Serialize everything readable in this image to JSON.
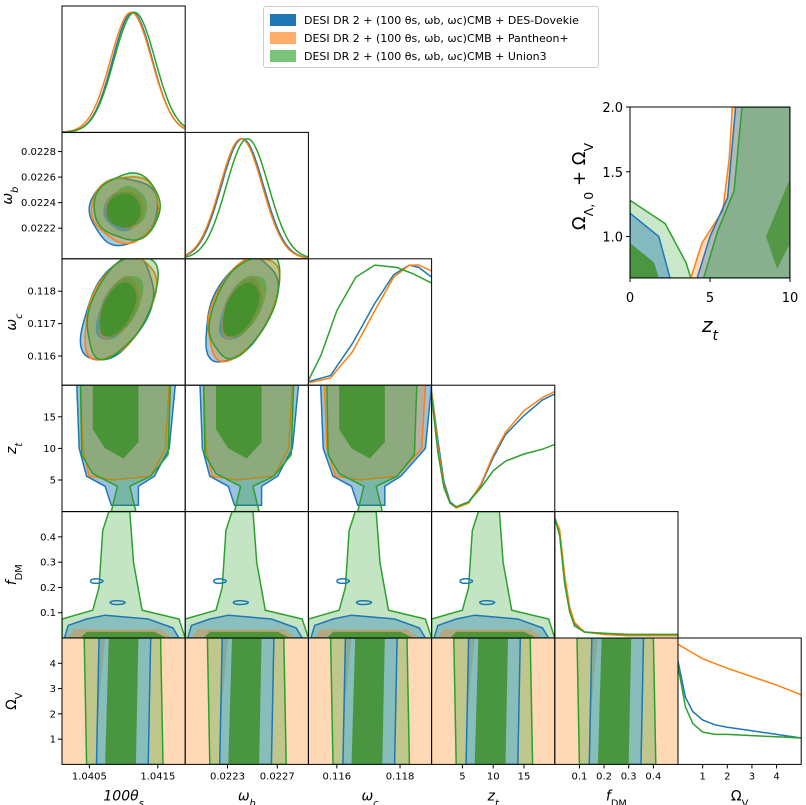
{
  "colors": {
    "blue": "#1f77b4",
    "orange": "#ff7f0e",
    "green": "#2ca02c",
    "overlap_green": "#3f8f2a"
  },
  "legend": {
    "placement": "top-center",
    "entries": [
      {
        "label": "DESI DR 2 + (100 θs, ωb, ωc)CMB + DES-Dovekie",
        "color": "#1f77b4"
      },
      {
        "label": "DESI DR 2 + (100 θs, ωb, ωc)CMB + Pantheon+",
        "color": "#ffad6b"
      },
      {
        "label": "DESI DR 2 + (100 θs, ωb, ωc)CMB + Union3",
        "color": "#7cc47a"
      }
    ]
  },
  "chart_data": [
    {
      "type": "corner",
      "parameters": [
        "100θs",
        "ωb",
        "ωc",
        "zt",
        "fDM",
        "ΩV"
      ],
      "ranges": {
        "100θs": [
          1.0401,
          1.0419
        ],
        "ωb": [
          0.02196,
          0.02295
        ],
        "ωc": [
          0.1151,
          0.119
        ],
        "zt": [
          0,
          20
        ],
        "fDM": [
          0,
          0.5
        ],
        "ΩV": [
          0,
          5
        ]
      },
      "x_ticks": {
        "100θs": [
          "1.0405",
          "1.0415"
        ],
        "ωb": [
          "0.0223",
          "0.0227"
        ],
        "ωc": [
          "0.116",
          "0.118"
        ],
        "zt": [
          "5",
          "10",
          "15"
        ],
        "fDM": [
          "0.1",
          "0.2",
          "0.3",
          "0.4"
        ],
        "ΩV": [
          "1",
          "2",
          "3",
          "4"
        ]
      },
      "y_ticks": {
        "ωb": [
          "0.0222",
          "0.0224",
          "0.0226",
          "0.0228"
        ],
        "ωc": [
          "0.116",
          "0.117",
          "0.118"
        ],
        "zt": [
          "5",
          "10",
          "15"
        ],
        "fDM": [
          "0.1",
          "0.2",
          "0.3",
          "0.4"
        ],
        "ΩV": [
          "1",
          "2",
          "3",
          "4"
        ]
      },
      "marginals": [
        {
          "param": "100θs",
          "series": [
            {
              "color": "blue",
              "mean": 1.04113,
              "sigma": 0.00029
            },
            {
              "color": "orange",
              "mean": 1.04111,
              "sigma": 0.0003
            },
            {
              "color": "green",
              "mean": 1.04116,
              "sigma": 0.0003
            }
          ]
        },
        {
          "param": "ωb",
          "series": [
            {
              "color": "blue",
              "mean": 0.02242,
              "sigma": 0.00017
            },
            {
              "color": "orange",
              "mean": 0.02241,
              "sigma": 0.00017
            },
            {
              "color": "green",
              "mean": 0.02246,
              "sigma": 0.00017
            }
          ]
        },
        {
          "param": "ωc",
          "series": [
            {
              "color": "blue",
              "x": [
                0.1151,
                0.1158,
                0.1165,
                0.1172,
                0.1178,
                0.1183,
                0.1186,
                0.119
              ],
              "y": [
                0.03,
                0.08,
                0.35,
                0.68,
                0.92,
                1.0,
                0.98,
                0.9
              ]
            },
            {
              "color": "orange",
              "x": [
                0.1151,
                0.1158,
                0.1165,
                0.1172,
                0.1178,
                0.1183,
                0.1186,
                0.119
              ],
              "y": [
                0.02,
                0.06,
                0.28,
                0.62,
                0.9,
                1.0,
                1.0,
                0.95
              ]
            },
            {
              "color": "green",
              "x": [
                0.1151,
                0.1155,
                0.116,
                0.1166,
                0.1172,
                0.1179,
                0.1184,
                0.119
              ],
              "y": [
                0.04,
                0.25,
                0.62,
                0.9,
                1.0,
                0.98,
                0.93,
                0.85
              ]
            }
          ]
        },
        {
          "param": "zt",
          "series": [
            {
              "color": "blue",
              "x": [
                0,
                1,
                2,
                3,
                4,
                6,
                8,
                10,
                12,
                15,
                18,
                20
              ],
              "y": [
                1.0,
                0.6,
                0.25,
                0.08,
                0.04,
                0.08,
                0.22,
                0.45,
                0.64,
                0.8,
                0.93,
                0.98
              ]
            },
            {
              "color": "orange",
              "x": [
                0,
                1,
                2,
                3,
                4,
                6,
                8,
                10,
                12,
                15,
                18,
                20
              ],
              "y": [
                1.0,
                0.55,
                0.22,
                0.07,
                0.03,
                0.07,
                0.23,
                0.47,
                0.66,
                0.84,
                0.95,
                1.0
              ]
            },
            {
              "color": "green",
              "x": [
                0,
                1,
                2,
                3,
                4,
                6,
                8,
                10,
                12,
                15,
                18,
                20
              ],
              "y": [
                0.96,
                0.5,
                0.2,
                0.07,
                0.04,
                0.08,
                0.2,
                0.34,
                0.42,
                0.48,
                0.52,
                0.56
              ]
            }
          ]
        },
        {
          "param": "fDM",
          "series": [
            {
              "color": "blue",
              "x": [
                0,
                0.02,
                0.04,
                0.06,
                0.08,
                0.12,
                0.2,
                0.3,
                0.5
              ],
              "y": [
                1.0,
                0.88,
                0.5,
                0.25,
                0.12,
                0.05,
                0.03,
                0.02,
                0.02
              ]
            },
            {
              "color": "orange",
              "x": [
                0,
                0.02,
                0.04,
                0.06,
                0.08,
                0.12,
                0.2,
                0.3,
                0.5
              ],
              "y": [
                1.0,
                0.9,
                0.52,
                0.26,
                0.13,
                0.05,
                0.03,
                0.02,
                0.02
              ]
            },
            {
              "color": "green",
              "x": [
                0,
                0.02,
                0.04,
                0.06,
                0.08,
                0.12,
                0.2,
                0.3,
                0.5
              ],
              "y": [
                1.0,
                0.85,
                0.45,
                0.22,
                0.1,
                0.05,
                0.04,
                0.03,
                0.03
              ]
            }
          ]
        },
        {
          "param": "ΩV",
          "series": [
            {
              "color": "blue",
              "x": [
                0,
                0.3,
                0.6,
                1,
                1.5,
                2,
                3,
                4,
                5
              ],
              "y": [
                0.86,
                0.56,
                0.44,
                0.37,
                0.33,
                0.31,
                0.28,
                0.25,
                0.22
              ]
            },
            {
              "color": "orange",
              "x": [
                0,
                0.5,
                1,
                2,
                3,
                4,
                5
              ],
              "y": [
                1.0,
                0.94,
                0.88,
                0.8,
                0.73,
                0.66,
                0.58
              ]
            },
            {
              "color": "green",
              "x": [
                0,
                0.3,
                0.6,
                1,
                1.5,
                2,
                3,
                4,
                5
              ],
              "y": [
                0.82,
                0.48,
                0.34,
                0.27,
                0.25,
                0.25,
                0.24,
                0.23,
                0.22
              ]
            }
          ]
        }
      ]
    },
    {
      "type": "area",
      "title": "",
      "xlabel": "zt",
      "ylabel": "ΩΛ,0 + ΩV",
      "xlim": [
        0,
        10
      ],
      "ylim": [
        0.68,
        2.0
      ],
      "x_ticks": [
        "0",
        "5",
        "10"
      ],
      "y_ticks": [
        "1.0",
        "1.5",
        "2.0"
      ]
    }
  ]
}
